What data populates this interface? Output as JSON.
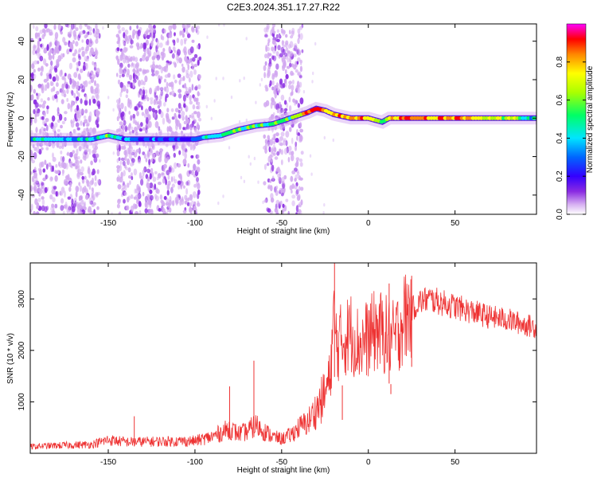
{
  "figure": {
    "title": "C2E3.2024.351.17.27.R22"
  },
  "chart_data": [
    {
      "type": "heatmap",
      "xlabel": "Height of straight line (km)",
      "ylabel": "Frequency (Hz)",
      "xlim": [
        -195,
        97
      ],
      "ylim": [
        -50,
        49
      ],
      "xticks": [
        -150,
        -100,
        -50,
        0,
        50
      ],
      "yticks": [
        -40,
        -20,
        0,
        20,
        40
      ],
      "grid": false,
      "colorbar": {
        "label": "Normalized spectral amplitude",
        "range": [
          0,
          1
        ],
        "ticks": [
          0.0,
          0.2,
          0.4,
          0.6,
          0.8
        ],
        "colormap": [
          "#ffffff",
          "#d8b3f2",
          "#8a2be2",
          "#3300ff",
          "#0066ff",
          "#00e5ff",
          "#00ff66",
          "#aaff00",
          "#ffff00",
          "#ff8800",
          "#ff0000",
          "#ff00ff"
        ]
      },
      "ridge": {
        "height_km": [
          -190,
          -160,
          -150,
          -140,
          -120,
          -100,
          -95,
          -85,
          -75,
          -65,
          -55,
          -45,
          -35,
          -30,
          -25,
          -20,
          -10,
          0,
          8,
          12,
          20,
          40,
          60,
          80,
          95
        ],
        "frequency_hz": [
          -11,
          -11,
          -9,
          -11,
          -11,
          -11,
          -10,
          -9,
          -6,
          -4,
          -3,
          0,
          3,
          5,
          4,
          2,
          0,
          0,
          -2,
          0,
          0,
          0,
          0,
          0,
          0
        ],
        "peak_amplitude": [
          0.45,
          0.4,
          0.55,
          0.35,
          0.3,
          0.3,
          0.4,
          0.6,
          0.65,
          0.55,
          0.6,
          0.6,
          0.85,
          0.95,
          0.8,
          0.9,
          0.85,
          0.85,
          0.6,
          0.85,
          0.9,
          0.9,
          0.85,
          0.7,
          0.45
        ]
      },
      "noise_bands_km": [
        [
          -195,
          -155
        ],
        [
          -145,
          -97
        ],
        [
          -60,
          -38
        ]
      ]
    },
    {
      "type": "line",
      "xlabel": "Height of straight line (km)",
      "ylabel": "SNR (10 * v/v)",
      "xlim": [
        -195,
        97
      ],
      "ylim": [
        0,
        3700
      ],
      "xticks": [
        -150,
        -100,
        -50,
        0,
        50
      ],
      "yticks": [
        1000,
        2000,
        3000
      ],
      "grid": false,
      "series": [
        {
          "color": "#ee3333",
          "x": [
            -195,
            -180,
            -160,
            -150,
            -140,
            -120,
            -100,
            -90,
            -80,
            -75,
            -70,
            -65,
            -60,
            -55,
            -50,
            -45,
            -40,
            -35,
            -30,
            -25,
            -22,
            -20,
            -18,
            -15,
            -10,
            -5,
            0,
            5,
            10,
            15,
            20,
            25,
            30,
            35,
            40,
            50,
            60,
            70,
            80,
            90,
            97
          ],
          "y": [
            130,
            150,
            170,
            260,
            220,
            230,
            240,
            320,
            480,
            380,
            420,
            550,
            430,
            320,
            280,
            350,
            500,
            600,
            850,
            1150,
            1500,
            2600,
            2100,
            2200,
            2350,
            2100,
            2250,
            2400,
            2300,
            2200,
            2600,
            2800,
            2950,
            3000,
            2950,
            2850,
            2750,
            2650,
            2600,
            2500,
            2450
          ]
        }
      ],
      "spikes": [
        {
          "x": -19.5,
          "y": 3700
        },
        {
          "x": -66,
          "y": 1800
        },
        {
          "x": -80,
          "y": 1300
        },
        {
          "x": -135,
          "y": 720
        },
        {
          "x": 12,
          "y": 3300
        },
        {
          "x": 25,
          "y": 3450
        },
        {
          "x": 13,
          "y": 1150
        },
        {
          "x": -15,
          "y": 650
        }
      ]
    }
  ]
}
